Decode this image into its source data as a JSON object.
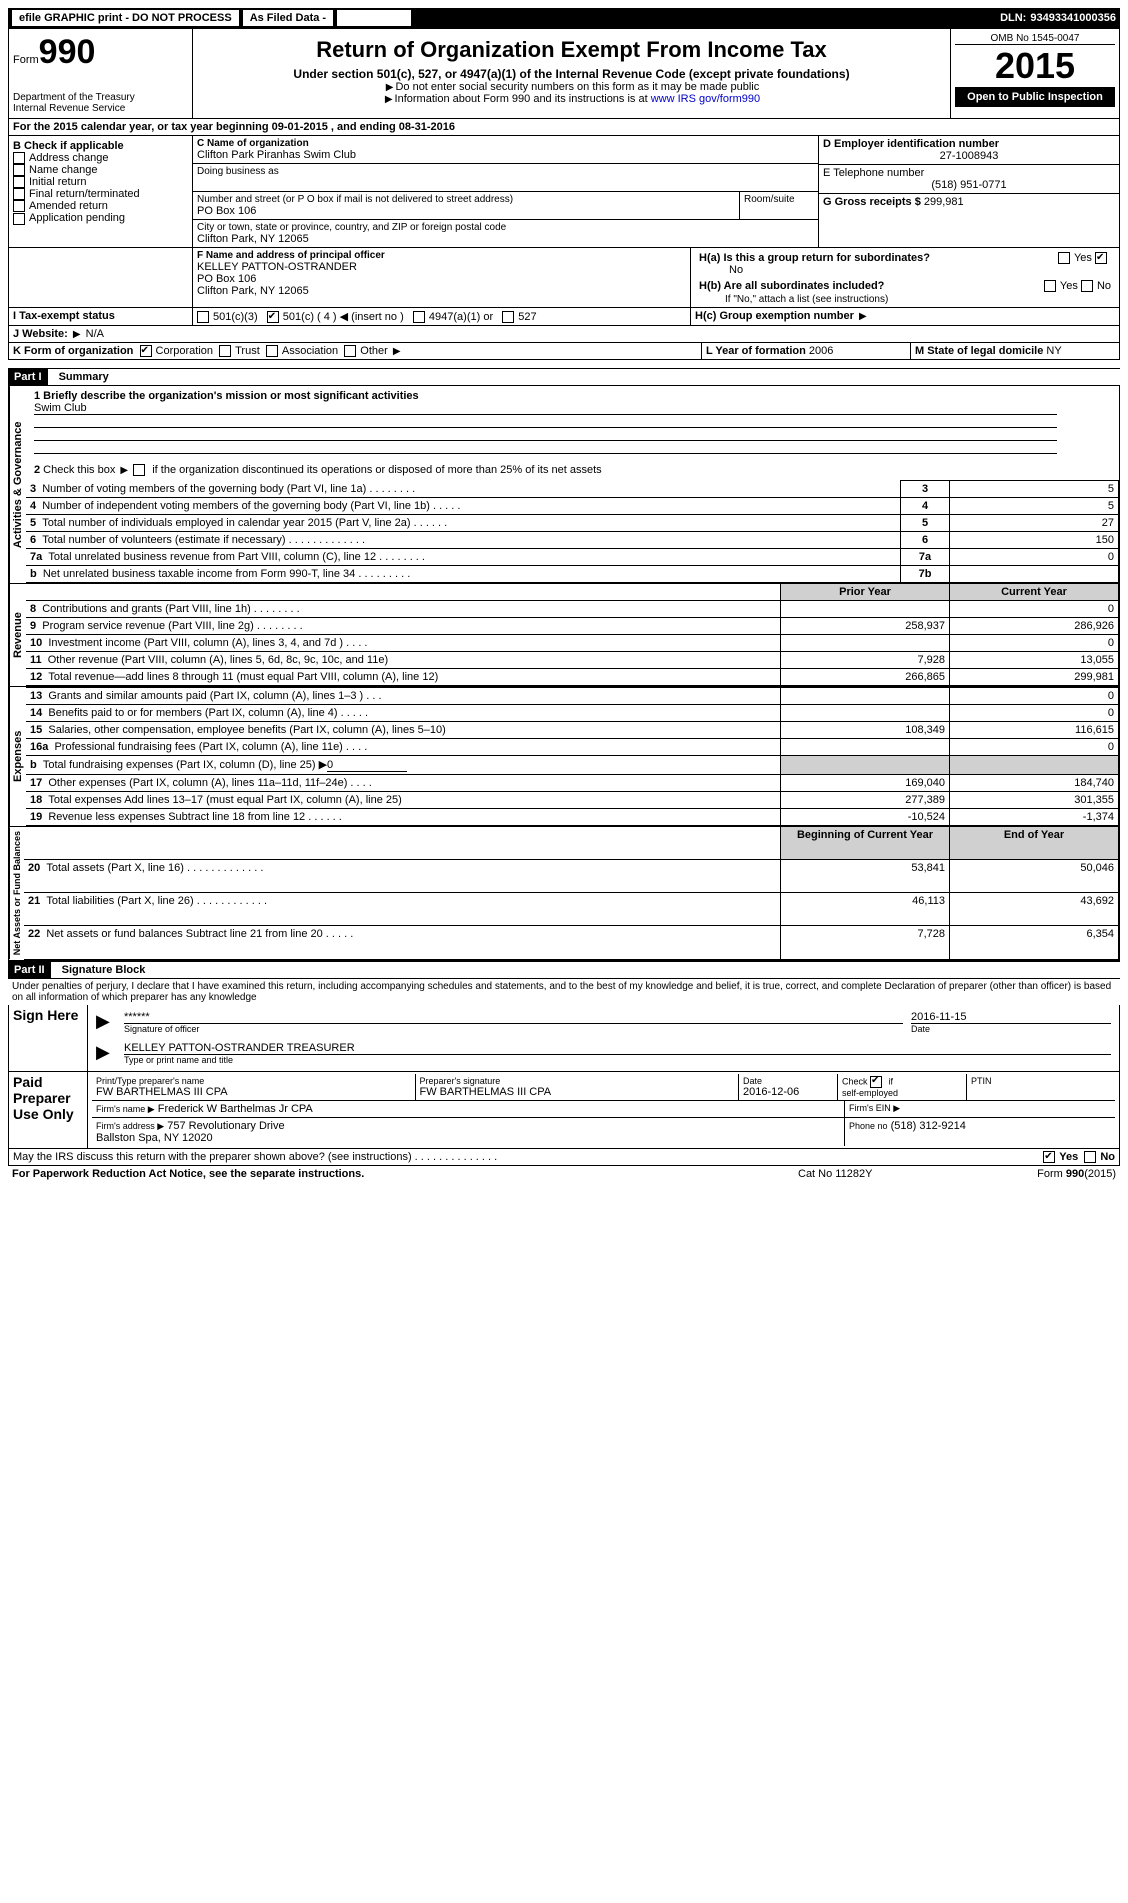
{
  "topbar": {
    "efile": "efile GRAPHIC print - DO NOT PROCESS",
    "asfiled": "As Filed Data -",
    "dln_label": "DLN:",
    "dln": "93493341000356"
  },
  "header": {
    "form": "Form",
    "form_no": "990",
    "dept": "Department of the Treasury\nInternal Revenue Service",
    "title": "Return of Organization Exempt From Income Tax",
    "subtitle": "Under section 501(c), 527, or 4947(a)(1) of the Internal Revenue Code (except private foundations)",
    "note1": "Do not enter social security numbers on this form as it may be made public",
    "note2": "Information about Form 990 and its instructions is at",
    "note2_link": "www IRS gov/form990",
    "omb": "OMB No 1545-0047",
    "year": "2015",
    "open": "Open to Public Inspection"
  },
  "A": {
    "text": "For the 2015 calendar year, or tax year beginning 09-01-2015    , and ending 08-31-2016"
  },
  "B": {
    "label": "B Check if applicable",
    "opts": [
      "Address change",
      "Name change",
      "Initial return",
      "Final return/terminated",
      "Amended return",
      "Application pending"
    ]
  },
  "C": {
    "name_label": "C Name of organization",
    "name": "Clifton Park Piranhas Swim Club",
    "dba_label": "Doing business as",
    "street_label": "Number and street (or P O  box if mail is not delivered to street address)",
    "room_label": "Room/suite",
    "street": "PO Box 106",
    "city_label": "City or town, state or province, country, and ZIP or foreign postal code",
    "city": "Clifton Park, NY  12065"
  },
  "D": {
    "label": "D Employer identification number",
    "value": "27-1008943"
  },
  "E": {
    "label": "E Telephone number",
    "value": "(518) 951-0771"
  },
  "G": {
    "label": "G Gross receipts $",
    "value": "299,981"
  },
  "F": {
    "label": "F  Name and address of principal officer",
    "name": "KELLEY PATTON-OSTRANDER",
    "addr1": "PO Box 106",
    "addr2": "Clifton Park, NY  12065"
  },
  "H": {
    "a": "H(a)  Is this a group return for subordinates?",
    "a_ans": "No",
    "b": "H(b)  Are all subordinates included?",
    "b_note": "If \"No,\" attach a list  (see instructions)",
    "c": "H(c)  Group exemption number"
  },
  "I": {
    "label": "I    Tax-exempt status",
    "a": "501(c)(3)",
    "b": "501(c) ( 4 )",
    "b_note": "(insert no )",
    "c": "4947(a)(1) or",
    "d": "527"
  },
  "J": {
    "label": "J   Website:",
    "value": "N/A"
  },
  "K": {
    "label": "K Form of organization",
    "opts": [
      "Corporation",
      "Trust",
      "Association",
      "Other"
    ]
  },
  "L": {
    "label": "L Year of formation",
    "value": "2006"
  },
  "M": {
    "label": "M State of legal domicile",
    "value": "NY"
  },
  "PartI": {
    "bar": "Part I",
    "title": "Summary",
    "l1": "1 Briefly describe the organization's mission or most significant activities",
    "l1v": "Swim Club",
    "l2": "2  Check this box ▶     if the organization discontinued its operations or disposed of more than 25% of its net assets",
    "rows_gov": [
      {
        "n": "3",
        "t": "Number of voting members of the governing body (Part VI, line 1a)   .   .   .   .   .   .   .   .",
        "k": "3",
        "v": "5"
      },
      {
        "n": "4",
        "t": "Number of independent voting members of the governing body (Part VI, line 1b)  .   .   .   .   .",
        "k": "4",
        "v": "5"
      },
      {
        "n": "5",
        "t": "Total number of individuals employed in calendar year 2015 (Part V, line 2a)  .   .   .   .   .   .",
        "k": "5",
        "v": "27"
      },
      {
        "n": "6",
        "t": "Total number of volunteers (estimate if necessary)   .   .   .   .   .   .   .   .   .   .   .   .   .",
        "k": "6",
        "v": "150"
      },
      {
        "n": "7a",
        "t": "Total unrelated business revenue from Part VIII, column (C), line 12   .   .   .   .   .   .   .   .",
        "k": "7a",
        "v": "0"
      },
      {
        "n": "b",
        "t": "Net unrelated business taxable income from Form 990-T, line 34   .   .   .   .   .   .   .   .   .",
        "k": "7b",
        "v": ""
      }
    ],
    "hdr_prior": "Prior Year",
    "hdr_curr": "Current Year",
    "rows_rev": [
      {
        "n": "8",
        "t": "Contributions and grants (Part VIII, line 1h)   .   .   .   .   .   .   .   .",
        "p": "",
        "c": "0"
      },
      {
        "n": "9",
        "t": "Program service revenue (Part VIII, line 2g)   .   .   .   .   .   .   .   .",
        "p": "258,937",
        "c": "286,926"
      },
      {
        "n": "10",
        "t": "Investment income (Part VIII, column (A), lines 3, 4, and 7d )   .   .   .   .",
        "p": "",
        "c": "0"
      },
      {
        "n": "11",
        "t": "Other revenue (Part VIII, column (A), lines 5, 6d, 8c, 9c, 10c, and 11e)",
        "p": "7,928",
        "c": "13,055"
      },
      {
        "n": "12",
        "t": "Total revenue—add lines 8 through 11 (must equal Part VIII, column (A), line 12)",
        "p": "266,865",
        "c": "299,981"
      }
    ],
    "rows_exp": [
      {
        "n": "13",
        "t": "Grants and similar amounts paid (Part IX, column (A), lines 1–3 )   .   .   .",
        "p": "",
        "c": "0"
      },
      {
        "n": "14",
        "t": "Benefits paid to or for members (Part IX, column (A), line 4)   .   .   .   .   .",
        "p": "",
        "c": "0"
      },
      {
        "n": "15",
        "t": "Salaries, other compensation, employee benefits (Part IX, column (A), lines 5–10)",
        "p": "108,349",
        "c": "116,615"
      },
      {
        "n": "16a",
        "t": "Professional fundraising fees (Part IX, column (A), line 11e)   .   .   .   .",
        "p": "",
        "c": "0"
      },
      {
        "n": "b",
        "t": "Total fundraising expenses (Part IX, column (D), line 25) ▶",
        "p": "SHADE",
        "c": "SHADE",
        "extra": "0"
      },
      {
        "n": "17",
        "t": "Other expenses (Part IX, column (A), lines 11a–11d, 11f–24e)   .   .   .   .",
        "p": "169,040",
        "c": "184,740"
      },
      {
        "n": "18",
        "t": "Total expenses  Add lines 13–17 (must equal Part IX, column (A), line 25)",
        "p": "277,389",
        "c": "301,355"
      },
      {
        "n": "19",
        "t": "Revenue less expenses  Subtract line 18 from line 12   .   .   .   .   .   .",
        "p": "-10,524",
        "c": "-1,374"
      }
    ],
    "hdr_boy": "Beginning of Current Year",
    "hdr_eoy": "End of Year",
    "rows_nab": [
      {
        "n": "20",
        "t": "Total assets (Part X, line 16)   .   .   .   .   .   .   .   .   .   .   .   .   .",
        "p": "53,841",
        "c": "50,046"
      },
      {
        "n": "21",
        "t": "Total liabilities (Part X, line 26)   .   .   .   .   .   .   .   .   .   .   .   .",
        "p": "46,113",
        "c": "43,692"
      },
      {
        "n": "22",
        "t": "Net assets or fund balances  Subtract line 21 from line 20   .   .   .   .   .",
        "p": "7,728",
        "c": "6,354"
      }
    ],
    "side_gov": "Activities & Governance",
    "side_rev": "Revenue",
    "side_exp": "Expenses",
    "side_nab": "Net Assets or Fund Balances"
  },
  "PartII": {
    "bar": "Part II",
    "title": "Signature Block",
    "perjury": "Under penalties of perjury, I declare that I have examined this return, including accompanying schedules and statements, and to the best of my knowledge and belief, it is true, correct, and complete  Declaration of preparer (other than officer) is based on all information of which preparer has any knowledge",
    "signhere": "Sign Here",
    "sig_stars": "******",
    "sig_of_officer": "Signature of officer",
    "sig_date": "2016-11-15",
    "date_label": "Date",
    "officer_name": "KELLEY PATTON-OSTRANDER TREASURER",
    "type_label": "Type or print name and title",
    "paid": "Paid Preparer Use Only",
    "prep_name_label": "Print/Type preparer's name",
    "prep_name": "FW BARTHELMAS III CPA",
    "prep_sig_label": "Preparer's signature",
    "prep_sig": "FW BARTHELMAS III CPA",
    "prep_date_label": "Date",
    "prep_date": "2016-12-06",
    "self_emp": "Check        if self-employed",
    "ptin": "PTIN",
    "firm_name_label": "Firm's name     ▶",
    "firm_name": "Frederick W Barthelmas Jr CPA",
    "firm_ein": "Firm's EIN ▶",
    "firm_addr_label": "Firm's address ▶",
    "firm_addr": "757 Revolutionary Drive\nBallston Spa, NY  12020",
    "firm_phone_label": "Phone no",
    "firm_phone": "(518) 312-9214",
    "discuss": "May the IRS discuss this return with the preparer shown above? (see instructions)   .   .   .   .   .   .   .   .   .   .   .   .   .   .",
    "yes": "Yes",
    "no": "No"
  },
  "footer": {
    "pra": "For Paperwork Reduction Act Notice, see the separate instructions.",
    "cat": "Cat No 11282Y",
    "form": "Form",
    "formno": "990",
    "formyr": "(2015)"
  }
}
